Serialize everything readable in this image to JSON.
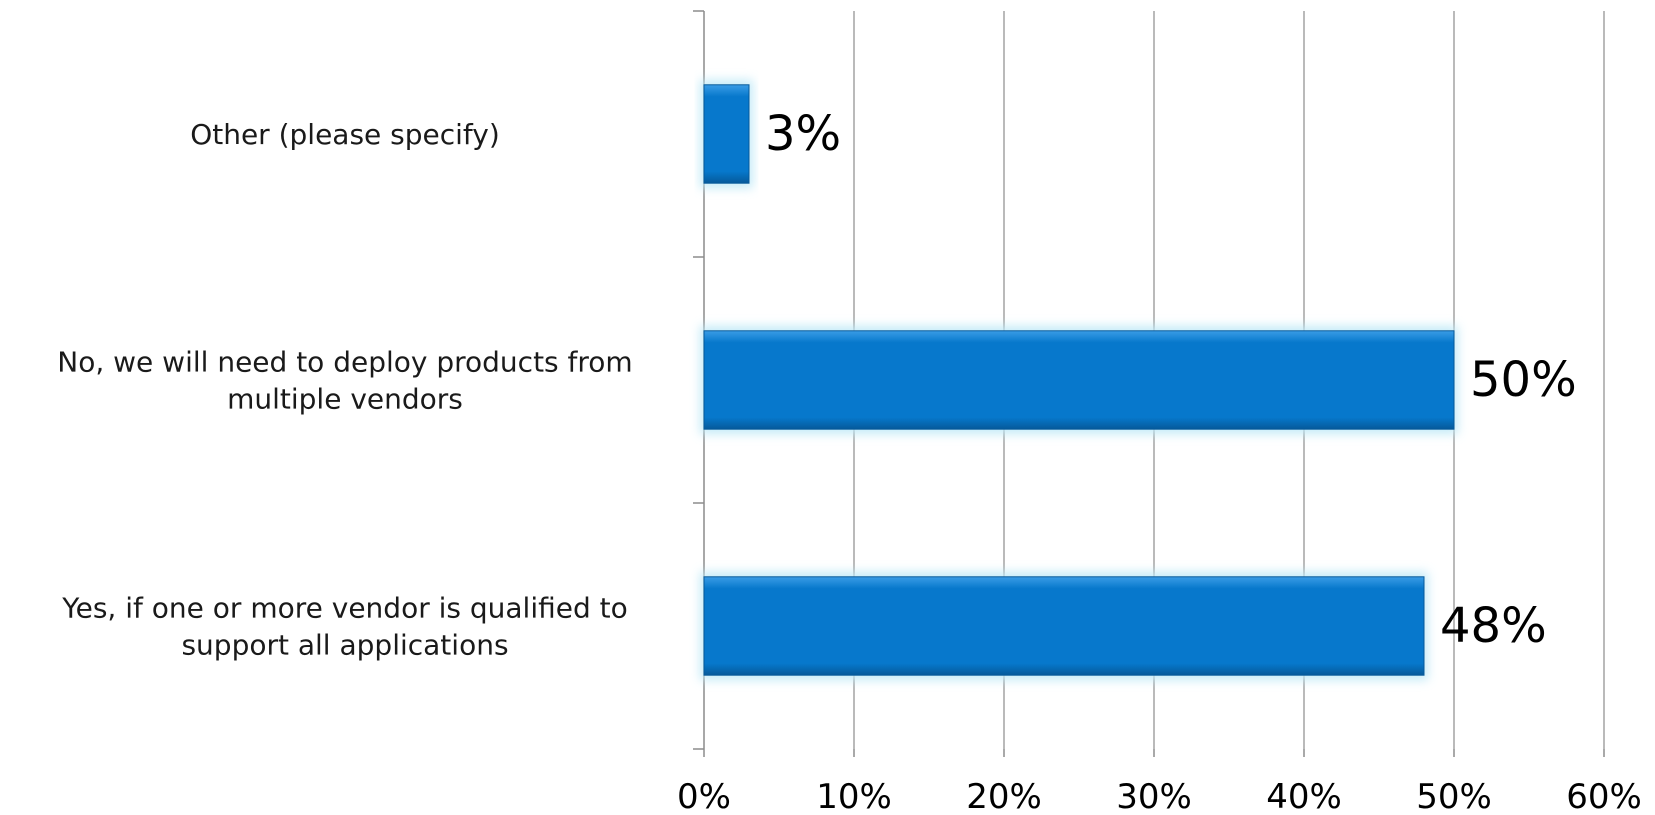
{
  "chart_data": {
    "type": "bar",
    "orientation": "horizontal",
    "title": "",
    "xlabel": "",
    "ylabel": "",
    "categories": [
      [
        "Other (please specify)"
      ],
      [
        "No, we will need to deploy products from",
        "multiple vendors"
      ],
      [
        "Yes, if one or more vendor is qualified to",
        "support all applications"
      ]
    ],
    "values": [
      3,
      50,
      48
    ],
    "value_labels": [
      "3%",
      "50%",
      "48%"
    ],
    "xlim": [
      0,
      60
    ],
    "ticks": [
      0,
      10,
      20,
      30,
      40,
      50,
      60
    ],
    "tick_labels": [
      "0%",
      "10%",
      "20%",
      "30%",
      "40%",
      "50%",
      "60%"
    ],
    "grid": "vertical",
    "legend": "none",
    "colors": {
      "bar": "#0778cc",
      "bar_light": "#3a9ce6",
      "bar_dark": "#05599a",
      "bar_glow": "#bfe9f7",
      "grid": "#8c8c8c",
      "axis": "#8c8c8c"
    }
  }
}
